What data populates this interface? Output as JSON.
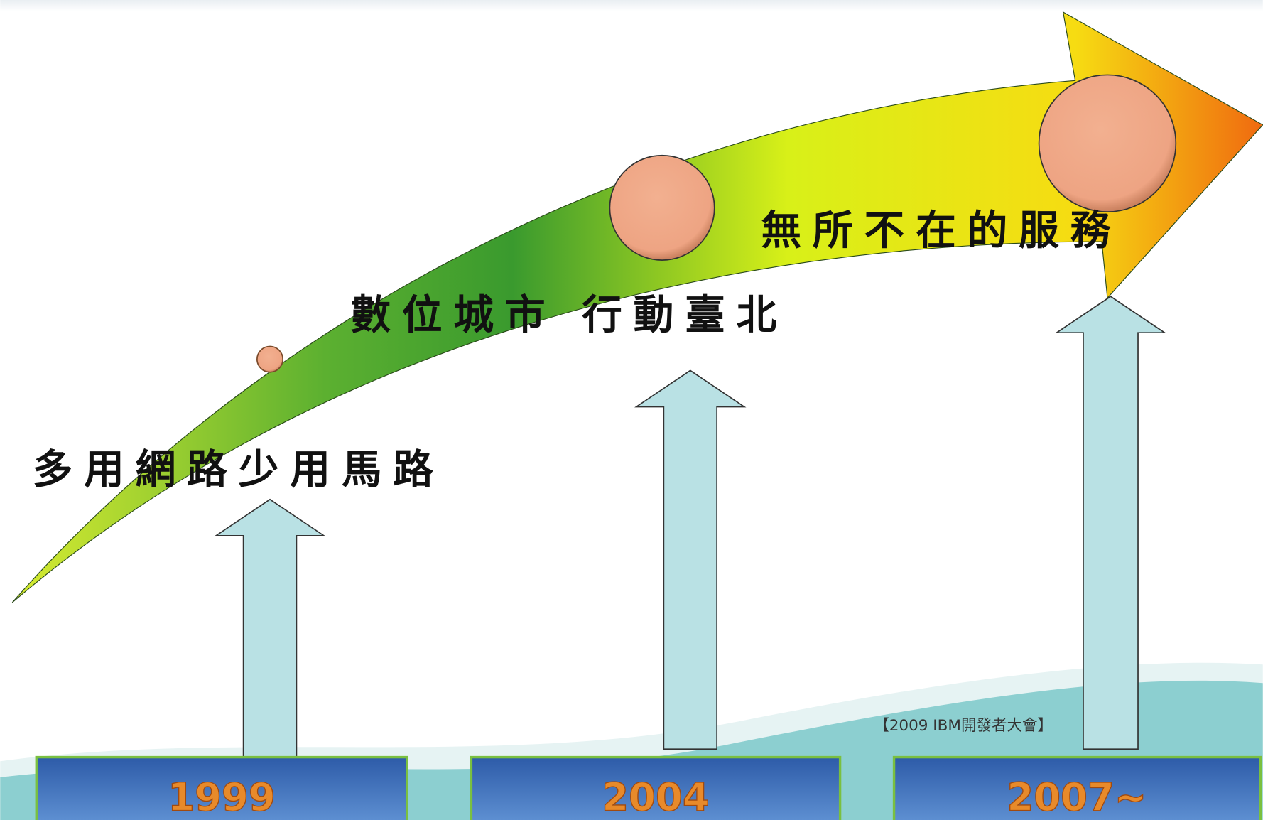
{
  "phases": [
    {
      "label": "多用網路少用馬路",
      "year": "1999"
    },
    {
      "label": "數位城市 行動臺北",
      "year": "2004"
    },
    {
      "label": "無所不在的服務",
      "year": "2007~"
    }
  ],
  "footer": "【2009 IBM開發者大會】"
}
